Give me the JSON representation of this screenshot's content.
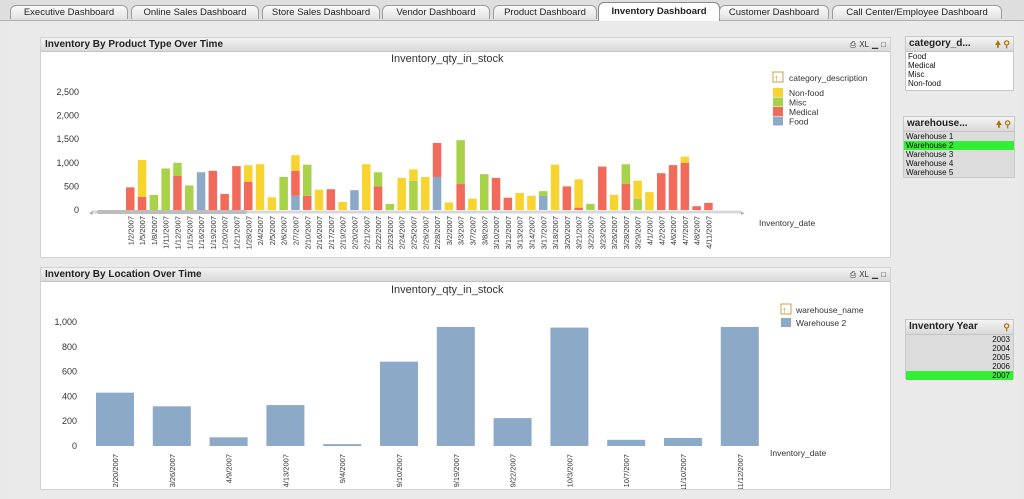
{
  "tabs": [
    {
      "label": "Executive Dashboard",
      "active": false
    },
    {
      "label": "Online Sales Dashboard",
      "active": false
    },
    {
      "label": "Store Sales Dashboard",
      "active": false
    },
    {
      "label": "Vendor Dashboard",
      "active": false
    },
    {
      "label": "Product Dashboard",
      "active": false
    },
    {
      "label": "Inventory Dashboard",
      "active": true
    },
    {
      "label": "Customer Dashboard",
      "active": false
    },
    {
      "label": "Call Center/Employee  Dashboard",
      "active": false
    }
  ],
  "panels": {
    "product_type": {
      "caption": "Inventory By Product Type Over Time",
      "tools": "XL"
    },
    "location": {
      "caption": "Inventory By Location Over Time",
      "tools": "XL"
    }
  },
  "filters": {
    "category": {
      "caption": "category_d...",
      "items": [
        "Food",
        "Medical",
        "Misc",
        "Non-food"
      ]
    },
    "warehouse": {
      "caption": "warehouse...",
      "items": [
        "Warehouse 1",
        "Warehouse 2",
        "Warehouse 3",
        "Warehouse 4",
        "Warehouse 5"
      ],
      "selected": "Warehouse 2"
    },
    "year": {
      "caption": "Inventory Year",
      "items": [
        "2003",
        "2004",
        "2005",
        "2006",
        "2007"
      ],
      "selected": "2007"
    }
  },
  "colors": {
    "food": "#8da9c8",
    "medical": "#f26a5a",
    "misc": "#a8d24a",
    "nonfood": "#f8d430",
    "selected": "#33ee33"
  },
  "chart_data": [
    {
      "type": "bar",
      "stacked": true,
      "title": "Inventory_qty_in_stock",
      "xlabel": "Inventory_date",
      "legend_title": "category_description",
      "ylim": [
        0,
        2500
      ],
      "yticks": [
        0,
        500,
        1000,
        1500,
        2000,
        2500
      ],
      "categories": [
        "1/2/2007",
        "1/5/2007",
        "1/8/2007",
        "1/11/2007",
        "1/12/2007",
        "1/15/2007",
        "1/16/2007",
        "1/19/2007",
        "1/20/2007",
        "1/21/2007",
        "1/28/2007",
        "2/4/2007",
        "2/5/2007",
        "2/6/2007",
        "2/7/2007",
        "2/10/2007",
        "2/16/2007",
        "2/17/2007",
        "2/19/2007",
        "2/20/2007",
        "2/21/2007",
        "2/22/2007",
        "2/23/2007",
        "2/24/2007",
        "2/25/2007",
        "2/26/2007",
        "2/28/2007",
        "3/2/2007",
        "3/3/2007",
        "3/7/2007",
        "3/8/2007",
        "3/10/2007",
        "3/12/2007",
        "3/13/2007",
        "3/14/2007",
        "3/17/2007",
        "3/18/2007",
        "3/20/2007",
        "3/21/2007",
        "3/22/2007",
        "3/23/2007",
        "3/26/2007",
        "3/28/2007",
        "3/29/2007",
        "4/1/2007",
        "4/2/2007",
        "4/6/2007",
        "4/7/2007",
        "4/8/2007",
        "4/11/2007"
      ],
      "series": [
        {
          "name": "Food",
          "values": [
            0,
            0,
            0,
            0,
            0,
            0,
            800,
            0,
            0,
            0,
            0,
            0,
            0,
            0,
            300,
            0,
            0,
            0,
            0,
            420,
            0,
            0,
            0,
            0,
            0,
            0,
            700,
            0,
            0,
            0,
            0,
            0,
            0,
            0,
            0,
            300,
            0,
            0,
            0,
            0,
            0,
            0,
            0,
            0,
            0,
            0,
            0,
            0,
            0,
            0
          ]
        },
        {
          "name": "Medical",
          "values": [
            480,
            280,
            0,
            0,
            720,
            0,
            0,
            830,
            340,
            930,
            600,
            0,
            0,
            0,
            530,
            300,
            0,
            440,
            0,
            0,
            0,
            500,
            0,
            0,
            0,
            0,
            720,
            0,
            550,
            0,
            0,
            680,
            260,
            0,
            0,
            0,
            0,
            500,
            50,
            0,
            920,
            0,
            550,
            0,
            0,
            780,
            950,
            1000,
            80,
            150
          ]
        },
        {
          "name": "Misc",
          "values": [
            0,
            0,
            320,
            880,
            280,
            520,
            0,
            0,
            0,
            0,
            0,
            0,
            0,
            700,
            0,
            660,
            0,
            0,
            0,
            0,
            0,
            300,
            130,
            0,
            620,
            0,
            0,
            0,
            930,
            0,
            760,
            0,
            0,
            0,
            0,
            100,
            0,
            0,
            0,
            130,
            0,
            0,
            420,
            240,
            0,
            0,
            0,
            0,
            0,
            0
          ]
        },
        {
          "name": "Non-food",
          "values": [
            0,
            780,
            0,
            0,
            0,
            0,
            0,
            0,
            0,
            0,
            350,
            970,
            270,
            0,
            330,
            0,
            430,
            0,
            170,
            0,
            970,
            0,
            0,
            680,
            240,
            700,
            0,
            160,
            0,
            240,
            0,
            0,
            0,
            360,
            300,
            0,
            960,
            0,
            600,
            0,
            0,
            320,
            0,
            380,
            380,
            0,
            0,
            130,
            0,
            0
          ]
        }
      ]
    },
    {
      "type": "bar",
      "title": "Inventory_qty_in_stock",
      "xlabel": "Inventory_date",
      "legend_title": "warehouse_name",
      "ylim": [
        0,
        1000
      ],
      "yticks": [
        0,
        200,
        400,
        600,
        800,
        1000
      ],
      "categories": [
        "2/20/2007",
        "3/26/2007",
        "4/9/2007",
        "4/13/2007",
        "9/4/2007",
        "9/10/2007",
        "9/19/2007",
        "9/22/2007",
        "10/3/2007",
        "10/7/2007",
        "11/10/2007",
        "11/12/2007"
      ],
      "series": [
        {
          "name": "Warehouse 2",
          "values": [
            430,
            320,
            70,
            330,
            15,
            680,
            960,
            225,
            955,
            50,
            65,
            960
          ]
        }
      ]
    }
  ]
}
